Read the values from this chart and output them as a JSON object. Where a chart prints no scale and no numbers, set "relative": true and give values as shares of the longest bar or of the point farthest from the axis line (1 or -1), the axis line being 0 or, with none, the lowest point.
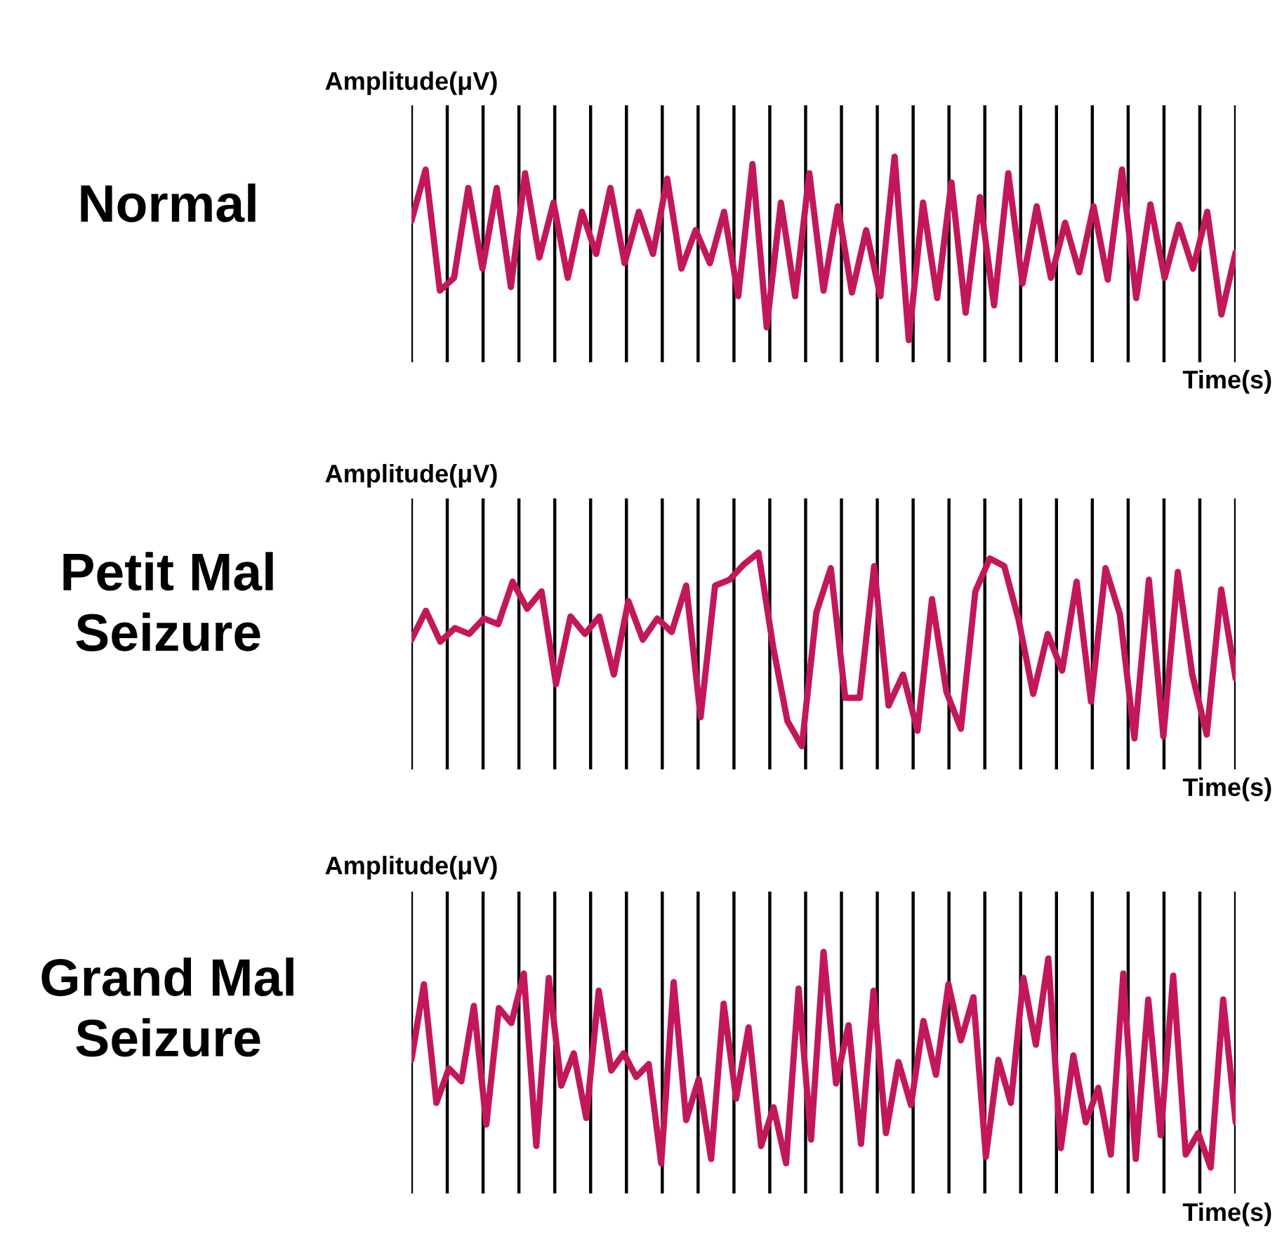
{
  "chart_data": [
    {
      "type": "line",
      "title": "Normal",
      "ylabel": "Amplitude(μV)",
      "xlabel": "Time(s)",
      "relative": true,
      "grid": "x",
      "categories": [
        null,
        null,
        null,
        null,
        null,
        null,
        null,
        null,
        null,
        null,
        null,
        null,
        null,
        null,
        null,
        null,
        null,
        null,
        null,
        null,
        null,
        null,
        null,
        null,
        null,
        null,
        null,
        null,
        null,
        null,
        null,
        null,
        null,
        null,
        null,
        null,
        null,
        null,
        null,
        null,
        null,
        null,
        null,
        null,
        null,
        null,
        null,
        null,
        null,
        null,
        null,
        null,
        null,
        null,
        null,
        null,
        null,
        null,
        null
      ],
      "series": [
        {
          "color": "#c2185b",
          "values": [
            0.65,
            0.93,
            0.27,
            0.34,
            0.83,
            0.39,
            0.83,
            0.29,
            0.91,
            0.45,
            0.75,
            0.34,
            0.7,
            0.47,
            0.83,
            0.42,
            0.7,
            0.47,
            0.88,
            0.39,
            0.6,
            0.42,
            0.7,
            0.24,
            0.96,
            0.07,
            0.75,
            0.24,
            0.91,
            0.27,
            0.73,
            0.26,
            0.6,
            0.24,
            1,
            0,
            0.75,
            0.23,
            0.86,
            0.15,
            0.78,
            0.19,
            0.91,
            0.31,
            0.73,
            0.34,
            0.64,
            0.37,
            0.73,
            0.33,
            0.93,
            0.23,
            0.74,
            0.34,
            0.63,
            0.39,
            0.7,
            0.14,
            0.48
          ]
        }
      ]
    },
    {
      "type": "line",
      "title": "Petit Mal\nSeizure",
      "ylabel": "Amplitude(μV)",
      "xlabel": "Time(s)",
      "relative": true,
      "grid": "x",
      "categories": [
        null,
        null,
        null,
        null,
        null,
        null,
        null,
        null,
        null,
        null,
        null,
        null,
        null,
        null,
        null,
        null,
        null,
        null,
        null,
        null,
        null,
        null,
        null,
        null,
        null,
        null,
        null,
        null,
        null,
        null,
        null,
        null,
        null,
        null,
        null,
        null,
        null,
        null,
        null,
        null,
        null,
        null,
        null,
        null,
        null,
        null,
        null,
        null,
        null,
        null,
        null,
        null,
        null,
        null,
        null,
        null,
        null,
        null
      ],
      "series": [
        {
          "color": "#c2185b",
          "values": [
            0.55,
            0.7,
            0.54,
            0.61,
            0.58,
            0.66,
            0.63,
            0.85,
            0.71,
            0.8,
            0.32,
            0.67,
            0.58,
            0.67,
            0.37,
            0.75,
            0.55,
            0.66,
            0.59,
            0.83,
            0.15,
            0.83,
            0.86,
            0.94,
            1,
            0.52,
            0.13,
            0,
            0.69,
            0.92,
            0.25,
            0.25,
            0.93,
            0.21,
            0.37,
            0.08,
            0.76,
            0.28,
            0.09,
            0.8,
            0.97,
            0.93,
            0.65,
            0.27,
            0.58,
            0.39,
            0.85,
            0.23,
            0.92,
            0.68,
            0.04,
            0.86,
            0.05,
            0.9,
            0.37,
            0.06,
            0.81,
            0.35
          ]
        }
      ]
    },
    {
      "type": "line",
      "title": "Grand Mal\nSeizure",
      "ylabel": "Amplitude(μV)",
      "xlabel": "Time(s)",
      "relative": true,
      "grid": "x",
      "categories": [
        null,
        null,
        null,
        null,
        null,
        null,
        null,
        null,
        null,
        null,
        null,
        null,
        null,
        null,
        null,
        null,
        null,
        null,
        null,
        null,
        null,
        null,
        null,
        null,
        null,
        null,
        null,
        null,
        null,
        null,
        null,
        null,
        null,
        null,
        null,
        null,
        null,
        null,
        null,
        null,
        null,
        null,
        null,
        null,
        null,
        null,
        null,
        null,
        null,
        null,
        null,
        null,
        null,
        null,
        null,
        null,
        null,
        null,
        null,
        null,
        null,
        null,
        null,
        null,
        null,
        null,
        null
      ],
      "series": [
        {
          "color": "#c2185b",
          "values": [
            0.5,
            0.85,
            0.3,
            0.46,
            0.4,
            0.75,
            0.2,
            0.74,
            0.67,
            0.9,
            0.1,
            0.88,
            0.38,
            0.53,
            0.23,
            0.82,
            0.45,
            0.53,
            0.42,
            0.48,
            0.02,
            0.86,
            0.22,
            0.41,
            0.04,
            0.76,
            0.32,
            0.65,
            0.1,
            0.28,
            0.02,
            0.83,
            0.13,
            1,
            0.39,
            0.66,
            0.11,
            0.82,
            0.16,
            0.49,
            0.29,
            0.68,
            0.43,
            0.85,
            0.59,
            0.79,
            0.05,
            0.5,
            0.3,
            0.88,
            0.57,
            0.97,
            0.09,
            0.52,
            0.21,
            0.37,
            0.06,
            0.9,
            0.04,
            0.78,
            0.15,
            0.89,
            0.06,
            0.16,
            0,
            0.78,
            0.21
          ]
        }
      ]
    }
  ]
}
